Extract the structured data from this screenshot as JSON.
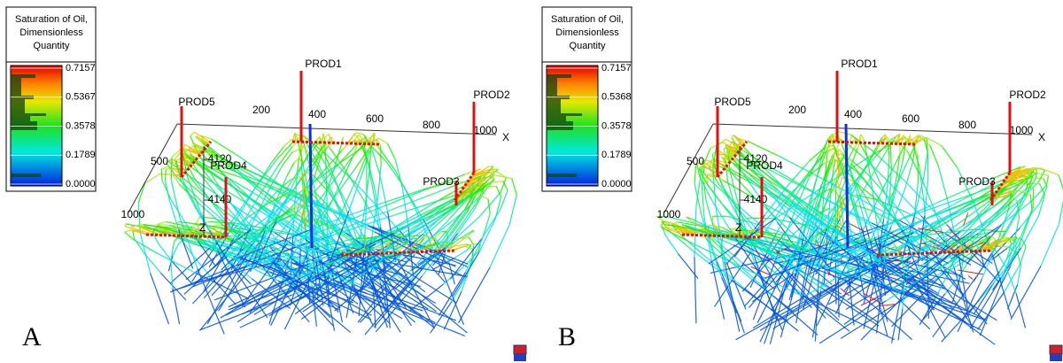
{
  "panels": [
    {
      "label": "A",
      "legend": {
        "title": [
          "Saturation of Oil,",
          "Dimensionless",
          "Quantity"
        ],
        "ticks": [
          0.7157,
          0.5367,
          0.3578,
          0.1789,
          {
            "value": 0,
            "label": "0.0000"
          }
        ]
      },
      "wells": [
        "PROD1",
        "PROD2",
        "PROD3",
        "PROD4",
        "PROD5"
      ],
      "x_axis": {
        "ticks": [
          200,
          400,
          600,
          800,
          1000
        ],
        "label": "X"
      },
      "y_axis": {
        "ticks": [
          500,
          1000
        ]
      },
      "z_axis": {
        "ticks": [
          4120,
          4140
        ],
        "label": "Z"
      }
    },
    {
      "label": "B",
      "legend": {
        "title": [
          "Saturation of Oil,",
          "Dimensionless",
          "Quantity"
        ],
        "ticks": [
          0.7157,
          0.5368,
          0.3578,
          0.1789,
          {
            "value": 0,
            "label": "0.0000"
          }
        ]
      },
      "wells": [
        "PROD1",
        "PROD2",
        "PROD3",
        "PROD4",
        "PROD5"
      ],
      "x_axis": {
        "ticks": [
          200,
          400,
          600,
          800,
          1000
        ],
        "label": "X"
      },
      "y_axis": {
        "ticks": [
          500,
          1000
        ]
      },
      "z_axis": {
        "ticks": [
          4120,
          4140
        ],
        "label": "Z"
      }
    }
  ]
}
